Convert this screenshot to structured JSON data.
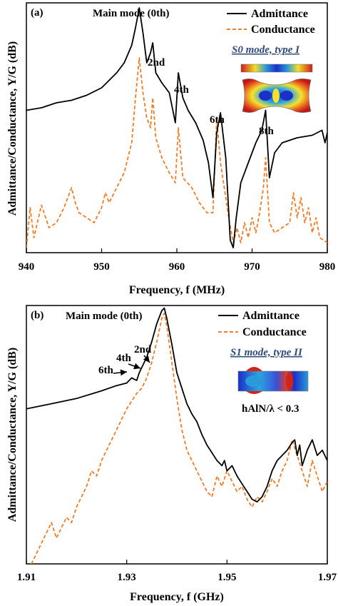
{
  "colors": {
    "admittance": "#000000",
    "conductance": "#f07d28",
    "mode_title": "#2e4a78"
  },
  "chart_data": [
    {
      "type": "line",
      "panel_label": "(a)",
      "xlabel": "Frequency, f (MHz)",
      "ylabel": "Admittance/Conductance, Y/G (dB)",
      "xlim": [
        940,
        980
      ],
      "ylim": [
        0,
        100
      ],
      "x_ticks": [
        "940",
        "950",
        "960",
        "970",
        "980"
      ],
      "legend": {
        "position": "top-right",
        "entries": [
          "Admittance",
          "Conductance"
        ]
      },
      "mode_title": "S0 mode, type I",
      "annotations": [
        "Main mode (0th)",
        "2nd",
        "4th",
        "6th",
        "8th"
      ],
      "series": [
        {
          "name": "Admittance",
          "style": "solid",
          "x": [
            940,
            942,
            944,
            946,
            948,
            950,
            951,
            952,
            953,
            954,
            954.5,
            955,
            955.5,
            956,
            956.5,
            956.8,
            957.2,
            958,
            959,
            959.8,
            960.2,
            960.8,
            961.5,
            962.5,
            963.5,
            964.2,
            964.8,
            965.3,
            965.8,
            966.5,
            967.1,
            967.5,
            967.9,
            968.5,
            969.5,
            970.5,
            971.3,
            971.8,
            972.3,
            973,
            974,
            976,
            978,
            979.3,
            979.7,
            980
          ],
          "y": [
            57,
            58,
            60,
            61,
            63,
            66,
            69,
            72,
            76,
            83,
            90,
            98,
            88,
            76,
            80,
            84,
            72,
            68,
            64,
            52,
            72,
            62,
            57,
            52,
            45,
            36,
            22,
            48,
            56,
            38,
            5,
            2,
            14,
            28,
            36,
            44,
            49,
            57,
            30,
            40,
            44,
            46,
            47,
            49,
            44,
            48
          ]
        },
        {
          "name": "Conductance",
          "style": "dashed",
          "x": [
            940,
            940.5,
            941,
            942,
            943,
            944,
            945,
            946,
            946.5,
            947,
            948,
            949,
            950,
            950.5,
            951,
            952,
            953,
            954,
            954.5,
            955,
            955.5,
            956,
            956.5,
            956.8,
            957.2,
            958,
            959,
            959.8,
            960.2,
            960.8,
            962,
            963,
            964,
            964.8,
            965.3,
            965.8,
            966.5,
            967,
            967.5,
            968,
            968.5,
            969,
            969.5,
            970,
            970.5,
            971,
            971.5,
            971.8,
            972.3,
            973,
            974,
            975,
            975.5,
            976,
            976.5,
            977,
            977.5,
            978,
            978.5,
            979,
            980
          ],
          "y": [
            2,
            18,
            6,
            19,
            10,
            12,
            18,
            26,
            20,
            16,
            14,
            12,
            18,
            24,
            20,
            26,
            32,
            44,
            62,
            78,
            64,
            54,
            50,
            62,
            46,
            38,
            32,
            28,
            50,
            30,
            26,
            20,
            16,
            16,
            54,
            36,
            22,
            12,
            4,
            10,
            4,
            12,
            6,
            14,
            8,
            16,
            26,
            38,
            12,
            8,
            10,
            12,
            24,
            14,
            22,
            12,
            18,
            8,
            14,
            6,
            4
          ]
        }
      ]
    },
    {
      "type": "line",
      "panel_label": "(b)",
      "xlabel": "Frequency, f (GHz)",
      "ylabel": "Admittance/Conductance, Y/G (dB)",
      "xlim": [
        1.91,
        1.97
      ],
      "ylim": [
        0,
        100
      ],
      "x_ticks": [
        "1.91",
        "1.93",
        "1.95",
        "1.97"
      ],
      "legend": {
        "position": "top-right",
        "entries": [
          "Admittance",
          "Conductance"
        ]
      },
      "mode_title": "S1 mode, type II",
      "mode_note": "hAlN/λ < 0.3",
      "annotations": [
        "Main mode (0th)",
        "2nd",
        "4th",
        "6th"
      ],
      "series": [
        {
          "name": "Admittance",
          "style": "solid",
          "x": [
            1.91,
            1.915,
            1.92,
            1.925,
            1.928,
            1.93,
            1.931,
            1.932,
            1.9325,
            1.933,
            1.934,
            1.935,
            1.936,
            1.937,
            1.9375,
            1.938,
            1.939,
            1.94,
            1.941,
            1.942,
            1.943,
            1.944,
            1.945,
            1.946,
            1.947,
            1.948,
            1.949,
            1.9495,
            1.95,
            1.951,
            1.952,
            1.953,
            1.954,
            1.955,
            1.956,
            1.957,
            1.958,
            1.959,
            1.96,
            1.961,
            1.962,
            1.963,
            1.9635,
            1.964,
            1.9645,
            1.965,
            1.966,
            1.967,
            1.968,
            1.969,
            1.97
          ],
          "y": [
            60,
            62,
            64,
            67,
            69,
            70,
            72,
            71,
            74,
            76,
            80,
            86,
            93,
            98,
            99,
            95,
            85,
            74,
            68,
            62,
            58,
            55,
            50,
            46,
            43,
            40,
            38,
            40,
            36,
            38,
            34,
            31,
            28,
            25,
            24,
            26,
            30,
            36,
            40,
            42,
            44,
            47,
            48,
            42,
            46,
            38,
            44,
            48,
            42,
            44,
            40
          ]
        },
        {
          "name": "Conductance",
          "style": "dashed",
          "x": [
            1.91,
            1.911,
            1.912,
            1.913,
            1.914,
            1.915,
            1.916,
            1.917,
            1.918,
            1.919,
            1.92,
            1.921,
            1.922,
            1.923,
            1.924,
            1.925,
            1.926,
            1.927,
            1.928,
            1.929,
            1.93,
            1.931,
            1.932,
            1.933,
            1.934,
            1.935,
            1.936,
            1.937,
            1.9375,
            1.938,
            1.939,
            1.94,
            1.941,
            1.942,
            1.943,
            1.944,
            1.945,
            1.946,
            1.947,
            1.948,
            1.949,
            1.95,
            1.951,
            1.952,
            1.953,
            1.954,
            1.955,
            1.956,
            1.957,
            1.958,
            1.959,
            1.96,
            1.961,
            1.962,
            1.963,
            1.964,
            1.965,
            1.966,
            1.967,
            1.968,
            1.969,
            1.97
          ],
          "y": [
            -4,
            0,
            4,
            8,
            12,
            16,
            10,
            14,
            18,
            16,
            22,
            26,
            30,
            36,
            34,
            40,
            44,
            48,
            52,
            56,
            60,
            63,
            66,
            68,
            72,
            78,
            86,
            95,
            97,
            92,
            78,
            64,
            52,
            44,
            40,
            36,
            32,
            28,
            26,
            34,
            30,
            36,
            32,
            28,
            30,
            25,
            22,
            26,
            24,
            28,
            33,
            30,
            36,
            40,
            48,
            42,
            36,
            30,
            40,
            34,
            28,
            32
          ]
        }
      ]
    }
  ]
}
